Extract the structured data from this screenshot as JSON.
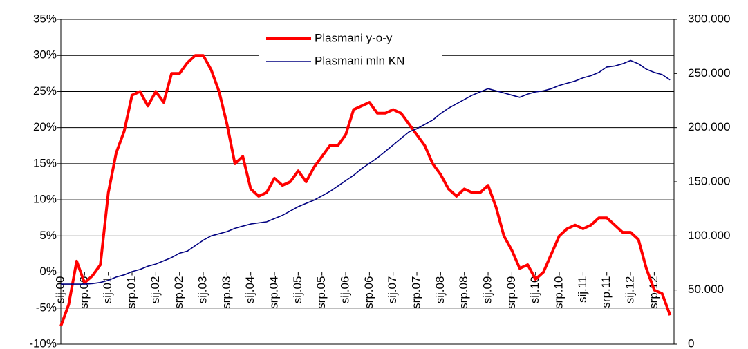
{
  "chart_data": {
    "type": "line",
    "legend": "top-center",
    "grid": true,
    "categories": [
      "sij.00",
      null,
      null,
      "srp.00",
      null,
      null,
      "sij.01",
      null,
      null,
      "srp.01",
      null,
      null,
      "sij.02",
      null,
      null,
      "srp.02",
      null,
      null,
      "sij.03",
      null,
      null,
      "srp.03",
      null,
      null,
      "sij.04",
      null,
      null,
      "srp.04",
      null,
      null,
      "sij.05",
      null,
      null,
      "srp.05",
      null,
      null,
      "sij.06",
      null,
      null,
      "srp.06",
      null,
      null,
      "sij.07",
      null,
      null,
      "srp.07",
      null,
      null,
      "sij.08",
      null,
      null,
      "srp.08",
      null,
      null,
      "sij.09",
      null,
      null,
      "srp.09",
      null,
      null,
      "sij.10",
      null,
      null,
      "srp.10",
      null,
      null,
      "sij.11",
      null,
      null,
      "srp.11",
      null,
      null,
      "sij.12",
      null,
      null,
      "srp.12",
      null,
      null
    ],
    "series": [
      {
        "name": "Plasmani y-o-y",
        "color": "#ff0000",
        "values": [
          -7.5,
          -4.5,
          1.5,
          -1.5,
          -0.5,
          1,
          11,
          16.5,
          19.5,
          24.5,
          25,
          23,
          25,
          23.5,
          27.5,
          27.5,
          29,
          30,
          30,
          28,
          25,
          20.5,
          15,
          16,
          11.5,
          10.5,
          11,
          13,
          12,
          12.5,
          14,
          12.5,
          14.5,
          16,
          17.5,
          17.5,
          19,
          22.5,
          23,
          23.5,
          22,
          22,
          22.5,
          22,
          20.5,
          19,
          17.5,
          15,
          13.5,
          11.5,
          10.5,
          11.5,
          11,
          11,
          12,
          9,
          5,
          3,
          0.5,
          1,
          -1,
          0,
          2.5,
          5,
          6,
          6.5,
          6,
          6.5,
          7.5,
          7.5,
          6.5,
          5.5,
          5.5,
          4.5,
          0.5,
          -2.5,
          -3,
          -6
        ]
      },
      {
        "name": "Plasmani mln KN",
        "color": "#000080",
        "axis": "y2",
        "values": [
          55500,
          55500,
          55500,
          55500,
          56000,
          57000,
          59000,
          62000,
          64000,
          67000,
          69000,
          72000,
          74000,
          77000,
          80000,
          84000,
          86000,
          91000,
          96000,
          100000,
          102000,
          104000,
          107000,
          109000,
          111000,
          112000,
          113000,
          116000,
          119000,
          123000,
          127000,
          130000,
          133000,
          137000,
          141000,
          146000,
          151000,
          156000,
          162000,
          167000,
          172000,
          178000,
          184000,
          190000,
          196000,
          199000,
          203000,
          207000,
          213000,
          218000,
          222000,
          226000,
          230000,
          233000,
          236000,
          234000,
          232000,
          230000,
          228000,
          231000,
          233000,
          234000,
          236000,
          239000,
          241000,
          243000,
          246000,
          248000,
          251000,
          256000,
          257000,
          259000,
          262000,
          259000,
          254000,
          251000,
          249000,
          244000
        ]
      }
    ],
    "ylim": [
      -10,
      35
    ],
    "yticks": [
      {
        "value": -10,
        "label": "-10%"
      },
      {
        "value": -5,
        "label": "-5%"
      },
      {
        "value": 0,
        "label": "0%"
      },
      {
        "value": 5,
        "label": "5%"
      },
      {
        "value": 10,
        "label": "10%"
      },
      {
        "value": 15,
        "label": "15%"
      },
      {
        "value": 20,
        "label": "20%"
      },
      {
        "value": 25,
        "label": "25%"
      },
      {
        "value": 30,
        "label": "30%"
      },
      {
        "value": 35,
        "label": "35%"
      }
    ],
    "y2lim": [
      0,
      300000
    ],
    "y2ticks": [
      0,
      {
        "value": 50000,
        "label": "50.000"
      },
      {
        "value": 100000,
        "label": "100.000"
      },
      {
        "value": 150000,
        "label": "150.000"
      },
      {
        "value": 200000,
        "label": "200.000"
      },
      {
        "value": 250000,
        "label": "250.000"
      },
      {
        "value": 300000,
        "label": "300.000"
      }
    ]
  }
}
